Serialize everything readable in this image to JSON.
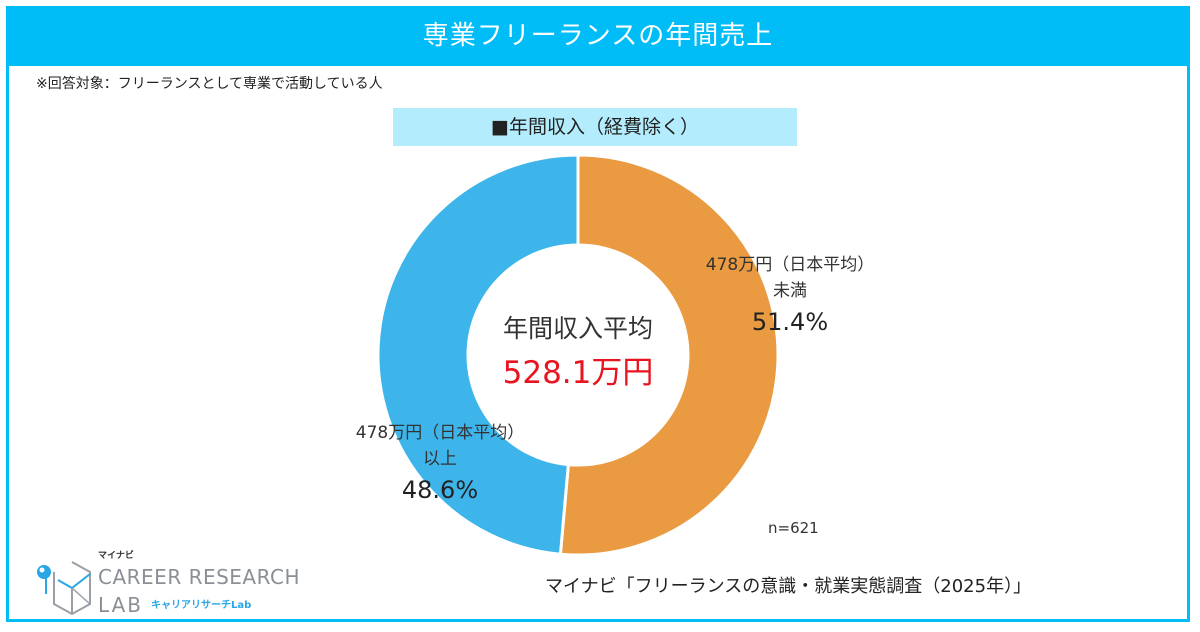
{
  "header": {
    "title": "専業フリーランスの年間売上"
  },
  "note": "※回答対象：フリーランスとして専業で活動している人",
  "colors": {
    "accent": "#00bdf7",
    "subtitle_bg": "#b3ecfc",
    "orange": "#ea9a40",
    "blue": "#3db5ea",
    "highlight": "#e8141f"
  },
  "chart_data": {
    "type": "pie",
    "variant": "donut",
    "title": "■年間収入（経費除く）",
    "center_title": "年間収入平均",
    "center_value": "528.1万円",
    "slices": [
      {
        "label_line1": "478万円（日本平均）",
        "label_line2": "未満",
        "value": 51.4,
        "value_label": "51.4%",
        "color": "#ea9a40"
      },
      {
        "label_line1": "478万円（日本平均）",
        "label_line2": "以上",
        "value": 48.6,
        "value_label": "48.6%",
        "color": "#3db5ea"
      }
    ],
    "n_label": "n=621",
    "legend": "none"
  },
  "source": "マイナビ「フリーランスの意識・就業実態調査（2025年）」",
  "logo": {
    "kana_top": "マイナビ",
    "line1": "CAREER RESEARCH",
    "line2": "LAB",
    "kana_sub": "キャリアリサーチLab"
  }
}
